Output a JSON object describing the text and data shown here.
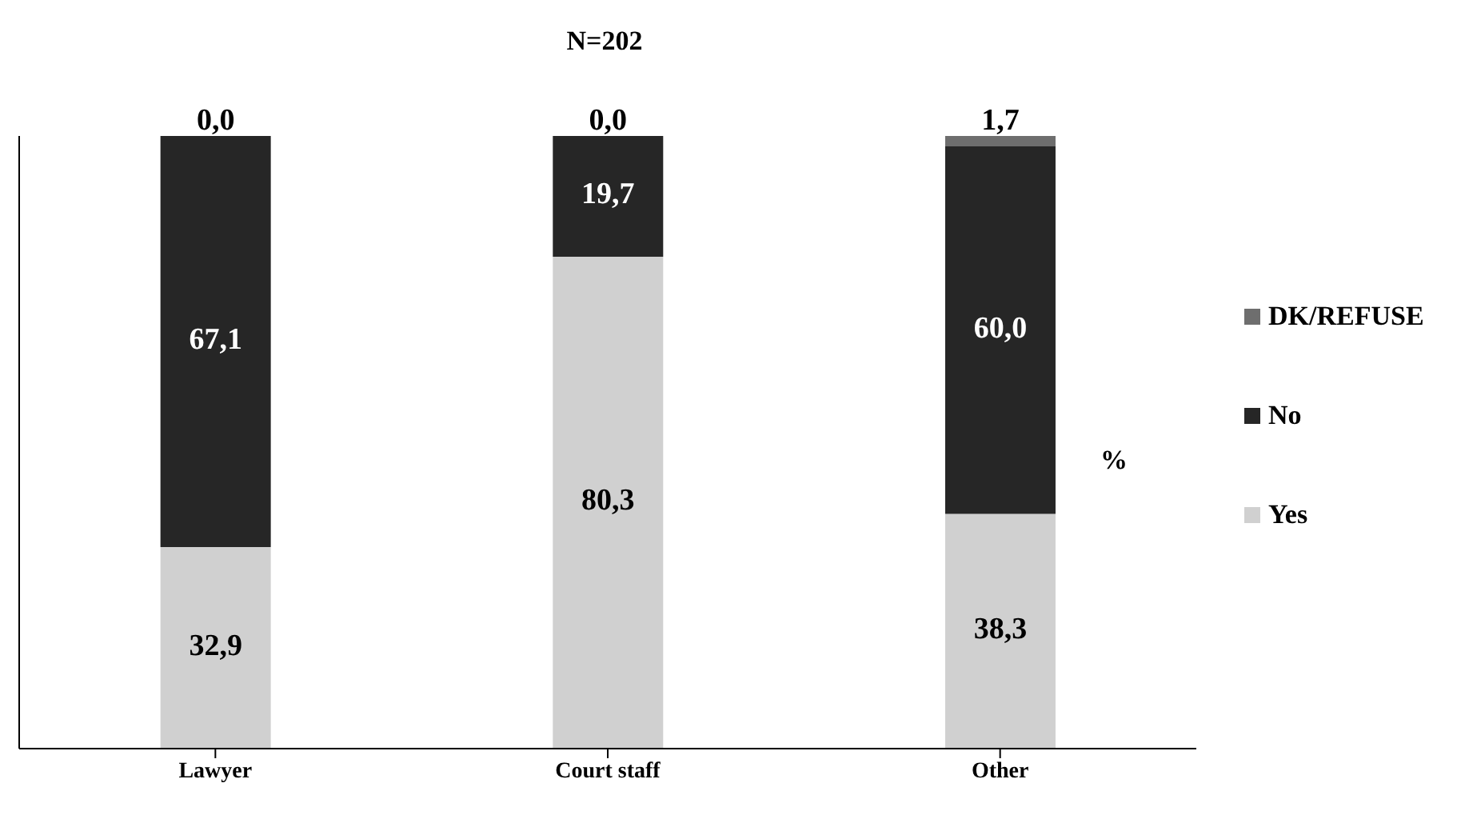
{
  "chart_data": {
    "type": "bar",
    "title": "N=202",
    "stacked": true,
    "categories": [
      "Lawyer",
      "Court staff",
      "Other"
    ],
    "series": [
      {
        "name": "Yes",
        "color": "#d0d0d0",
        "values": [
          32.9,
          80.3,
          38.3
        ],
        "value_labels": [
          "32,9",
          "80,3",
          "38,3"
        ]
      },
      {
        "name": "No",
        "color": "#262626",
        "values": [
          67.1,
          19.7,
          60.0
        ],
        "value_labels": [
          "67,1",
          "19,7",
          "60,0"
        ]
      },
      {
        "name": "DK/REFUSE",
        "color": "#6e6e6e",
        "values": [
          0.0,
          0.0,
          1.7
        ],
        "value_labels": [
          "0,0",
          "0,0",
          "1,7"
        ]
      }
    ],
    "tick_labels": "x",
    "legend": "right",
    "annotations": [
      "%"
    ]
  }
}
